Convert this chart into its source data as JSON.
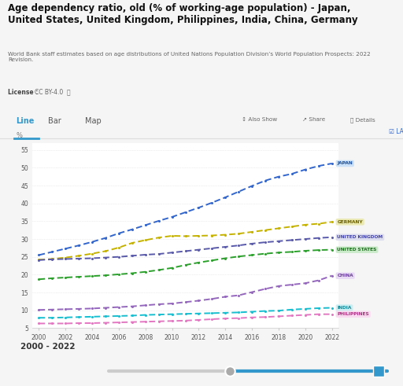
{
  "title": "Age dependency ratio, old (% of working-age population) - Japan,\nUnited States, United Kingdom, Philippines, India, China, Germany",
  "subtitle": "World Bank staff estimates based on age distributions of United Nations Population Division’s World Population Prospects: 2022\nRevision.",
  "license_text": "License : CC BY-4.0",
  "years": [
    2000,
    2001,
    2002,
    2003,
    2004,
    2005,
    2006,
    2007,
    2008,
    2009,
    2010,
    2011,
    2012,
    2013,
    2014,
    2015,
    2016,
    2017,
    2018,
    2019,
    2020,
    2021,
    2022
  ],
  "series": {
    "JAPAN": {
      "values": [
        25.5,
        26.4,
        27.3,
        28.2,
        29.2,
        30.3,
        31.6,
        32.7,
        33.9,
        35.1,
        36.2,
        37.5,
        38.8,
        40.2,
        41.7,
        43.3,
        44.9,
        46.4,
        47.5,
        48.3,
        49.5,
        50.5,
        51.2
      ],
      "color": "#3366cc",
      "label_bg": "#c8e0f8",
      "label_tc": "#1a4fa0"
    },
    "GERMANY": {
      "values": [
        24.2,
        24.4,
        24.8,
        25.3,
        25.9,
        26.6,
        27.6,
        28.9,
        29.7,
        30.4,
        30.9,
        30.8,
        30.9,
        31.0,
        31.2,
        31.5,
        32.0,
        32.5,
        33.0,
        33.5,
        34.0,
        34.3,
        34.8
      ],
      "color": "#c5b200",
      "label_bg": "#eae8b0",
      "label_tc": "#6b6000"
    },
    "UNITED KINGDOM": {
      "values": [
        24.1,
        24.3,
        24.4,
        24.5,
        24.6,
        24.8,
        25.0,
        25.3,
        25.6,
        25.8,
        26.2,
        26.6,
        27.0,
        27.4,
        27.8,
        28.2,
        28.7,
        29.1,
        29.4,
        29.7,
        30.0,
        30.3,
        30.5
      ],
      "color": "#5a5aaa",
      "label_bg": "#dcdcf0",
      "label_tc": "#4040aa"
    },
    "UNITED STATES": {
      "values": [
        18.7,
        19.0,
        19.2,
        19.4,
        19.6,
        19.8,
        20.1,
        20.4,
        20.8,
        21.3,
        21.9,
        22.7,
        23.4,
        24.0,
        24.6,
        25.1,
        25.5,
        25.9,
        26.2,
        26.4,
        26.7,
        26.9,
        27.0
      ],
      "color": "#2ca02c",
      "label_bg": "#c8eac8",
      "label_tc": "#1a6e1a"
    },
    "CHINA": {
      "values": [
        10.1,
        10.2,
        10.3,
        10.4,
        10.5,
        10.7,
        10.9,
        11.1,
        11.4,
        11.7,
        11.9,
        12.3,
        12.7,
        13.2,
        13.8,
        14.2,
        15.1,
        16.0,
        16.8,
        17.2,
        17.6,
        18.4,
        19.7
      ],
      "color": "#9467bd",
      "label_bg": "#e8d8f5",
      "label_tc": "#6b3a9e"
    },
    "INDIA": {
      "values": [
        7.9,
        7.9,
        8.0,
        8.1,
        8.2,
        8.3,
        8.4,
        8.5,
        8.7,
        8.8,
        8.9,
        9.0,
        9.1,
        9.2,
        9.3,
        9.4,
        9.6,
        9.8,
        9.9,
        10.2,
        10.4,
        10.6,
        10.7
      ],
      "color": "#17becf",
      "label_bg": "#c8eef2",
      "label_tc": "#0e8a99"
    },
    "PHILIPPINES": {
      "values": [
        6.3,
        6.3,
        6.3,
        6.4,
        6.4,
        6.5,
        6.6,
        6.7,
        6.8,
        6.9,
        7.0,
        7.1,
        7.3,
        7.5,
        7.7,
        7.8,
        8.0,
        8.1,
        8.3,
        8.5,
        8.7,
        8.9,
        8.9
      ],
      "color": "#e377c2",
      "label_bg": "#fad8ef",
      "label_tc": "#aa3080"
    }
  },
  "series_order": [
    "JAPAN",
    "GERMANY",
    "UNITED KINGDOM",
    "UNITED STATES",
    "CHINA",
    "INDIA",
    "PHILIPPINES"
  ],
  "ylim": [
    5,
    57
  ],
  "yticks": [
    5,
    10,
    15,
    20,
    25,
    30,
    35,
    40,
    45,
    50,
    55
  ],
  "grid_color": "#dddddd",
  "footer_text": "2000 - 2022",
  "tabs": [
    "Line",
    "Bar",
    "Map"
  ],
  "active_tab": "Line",
  "bg_color": "#f5f5f5",
  "chart_bg": "#ffffff"
}
